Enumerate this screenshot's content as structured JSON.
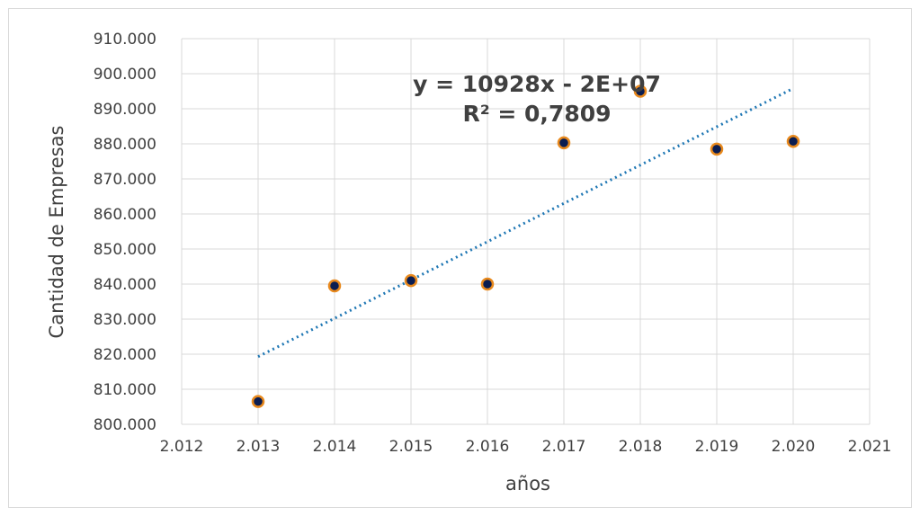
{
  "chart_data": {
    "type": "scatter",
    "xlabel": "años",
    "ylabel": "Cantidad de Empresas",
    "xlim": [
      2012,
      2021
    ],
    "ylim": [
      800000,
      910000
    ],
    "x_ticks": [
      2012,
      2013,
      2014,
      2015,
      2016,
      2017,
      2018,
      2019,
      2020,
      2021
    ],
    "x_tick_labels": [
      "2.012",
      "2.013",
      "2.014",
      "2.015",
      "2.016",
      "2.017",
      "2.018",
      "2.019",
      "2.020",
      "2.021"
    ],
    "y_ticks": [
      800000,
      810000,
      820000,
      830000,
      840000,
      850000,
      860000,
      870000,
      880000,
      890000,
      900000,
      910000
    ],
    "y_tick_labels": [
      "800.000",
      "810.000",
      "820.000",
      "830.000",
      "840.000",
      "850.000",
      "860.000",
      "870.000",
      "880.000",
      "890.000",
      "900.000",
      "910.000"
    ],
    "grid": true,
    "legend": "none",
    "series": [
      {
        "x": [
          2013,
          2014,
          2015,
          2016,
          2017,
          2018,
          2019,
          2020
        ],
        "y": [
          806500,
          839500,
          841000,
          840000,
          880300,
          895000,
          878500,
          880700
        ],
        "marker_fill": "#0b1d51",
        "marker_edge": "#e8891d"
      }
    ],
    "trendline": {
      "type": "linear",
      "x_range": [
        2013,
        2020
      ],
      "y_range": [
        819300,
        895800
      ],
      "color": "#1f77b4",
      "style": "dotted",
      "equation": "y = 10928x - 2E+07",
      "r_squared": "R² = 0,7809"
    }
  }
}
